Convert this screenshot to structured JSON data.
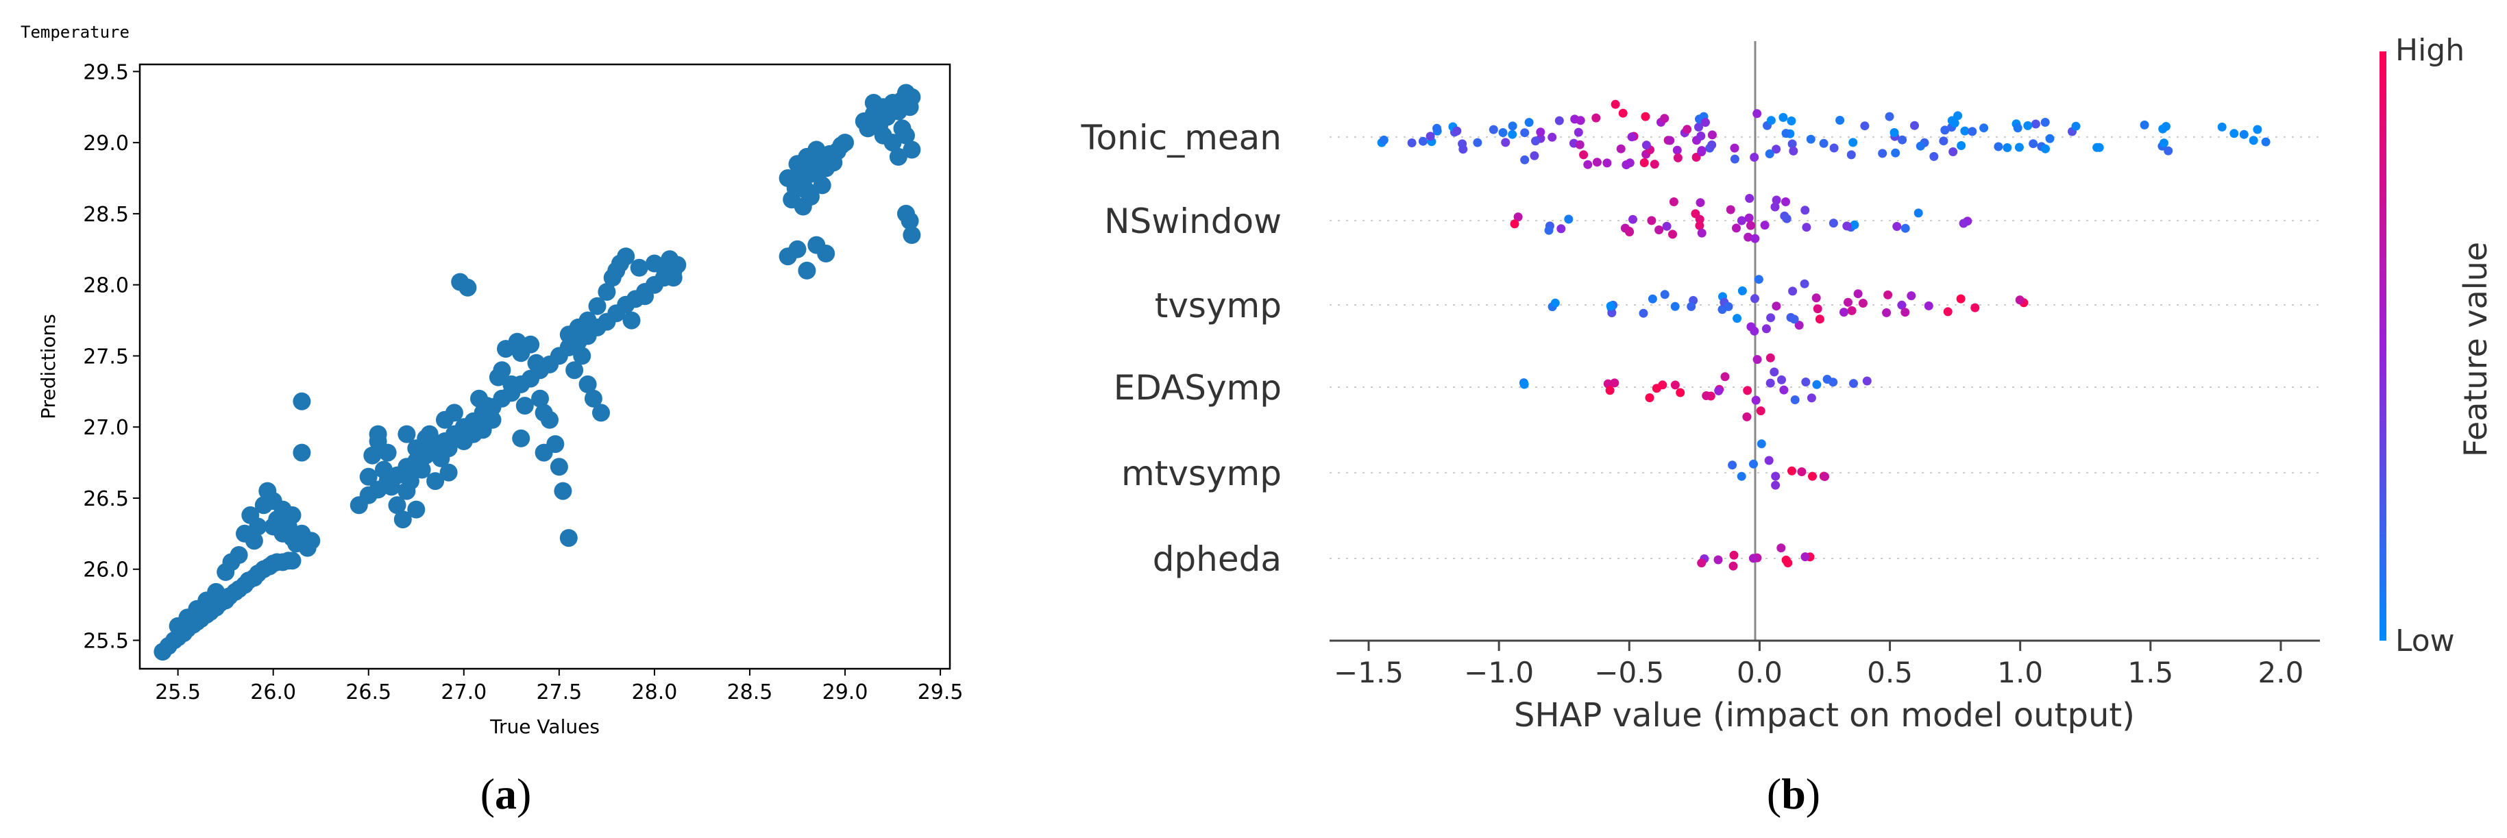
{
  "figure": {
    "caption_a": {
      "open": "(",
      "letter": "a",
      "close": ")"
    },
    "caption_b": {
      "open": "(",
      "letter": "b",
      "close": ")"
    }
  },
  "chart_data": [
    {
      "type": "scatter",
      "panel": "a",
      "title": "Temperature",
      "xlabel": "True Values",
      "ylabel": "Predictions",
      "xlim": [
        25.3,
        29.55
      ],
      "ylim": [
        25.3,
        29.55
      ],
      "xticks": [
        "25.5",
        "26.0",
        "26.5",
        "27.0",
        "27.5",
        "28.0",
        "28.5",
        "29.0",
        "29.5"
      ],
      "yticks": [
        "25.5",
        "26.0",
        "26.5",
        "27.0",
        "27.5",
        "28.0",
        "28.5",
        "29.0",
        "29.5"
      ],
      "color": "#1f77b4",
      "grid": false,
      "points": [
        [
          25.42,
          25.42
        ],
        [
          25.45,
          25.46
        ],
        [
          25.48,
          25.5
        ],
        [
          25.5,
          25.52
        ],
        [
          25.53,
          25.55
        ],
        [
          25.55,
          25.58
        ],
        [
          25.58,
          25.61
        ],
        [
          25.6,
          25.63
        ],
        [
          25.62,
          25.65
        ],
        [
          25.65,
          25.68
        ],
        [
          25.67,
          25.7
        ],
        [
          25.7,
          25.73
        ],
        [
          25.72,
          25.76
        ],
        [
          25.75,
          25.78
        ],
        [
          25.77,
          25.81
        ],
        [
          25.8,
          25.84
        ],
        [
          25.82,
          25.86
        ],
        [
          25.85,
          25.89
        ],
        [
          25.87,
          25.92
        ],
        [
          25.9,
          25.94
        ],
        [
          25.92,
          25.97
        ],
        [
          25.95,
          26.0
        ],
        [
          25.98,
          26.02
        ],
        [
          26.0,
          26.04
        ],
        [
          26.02,
          26.05
        ],
        [
          26.05,
          26.05
        ],
        [
          26.08,
          26.06
        ],
        [
          26.1,
          26.06
        ],
        [
          25.5,
          25.6
        ],
        [
          25.55,
          25.66
        ],
        [
          25.6,
          25.72
        ],
        [
          25.65,
          25.78
        ],
        [
          25.7,
          25.84
        ],
        [
          25.75,
          25.98
        ],
        [
          25.78,
          26.05
        ],
        [
          25.82,
          26.1
        ],
        [
          25.85,
          26.25
        ],
        [
          25.88,
          26.38
        ],
        [
          25.92,
          26.3
        ],
        [
          25.95,
          26.45
        ],
        [
          25.97,
          26.55
        ],
        [
          26.0,
          26.48
        ],
        [
          26.02,
          26.35
        ],
        [
          26.05,
          26.42
        ],
        [
          26.08,
          26.3
        ],
        [
          26.1,
          26.22
        ],
        [
          26.12,
          26.18
        ],
        [
          26.15,
          26.25
        ],
        [
          26.18,
          26.15
        ],
        [
          26.2,
          26.2
        ],
        [
          26.1,
          26.38
        ],
        [
          26.05,
          26.25
        ],
        [
          26.15,
          27.18
        ],
        [
          26.15,
          26.82
        ],
        [
          25.9,
          26.2
        ],
        [
          26.0,
          26.3
        ],
        [
          26.45,
          26.45
        ],
        [
          26.5,
          26.52
        ],
        [
          26.55,
          26.56
        ],
        [
          26.6,
          26.62
        ],
        [
          26.65,
          26.66
        ],
        [
          26.7,
          26.72
        ],
        [
          26.75,
          26.76
        ],
        [
          26.8,
          26.8
        ],
        [
          26.85,
          26.86
        ],
        [
          26.9,
          26.9
        ],
        [
          26.95,
          26.95
        ],
        [
          27.0,
          27.0
        ],
        [
          27.05,
          27.04
        ],
        [
          27.1,
          27.1
        ],
        [
          27.15,
          27.14
        ],
        [
          27.2,
          27.2
        ],
        [
          27.25,
          27.24
        ],
        [
          27.3,
          27.3
        ],
        [
          27.35,
          27.34
        ],
        [
          27.4,
          27.4
        ],
        [
          27.45,
          27.44
        ],
        [
          27.5,
          27.5
        ],
        [
          27.55,
          27.56
        ],
        [
          27.6,
          27.6
        ],
        [
          27.65,
          27.64
        ],
        [
          27.7,
          27.7
        ],
        [
          27.75,
          27.74
        ],
        [
          27.8,
          27.8
        ],
        [
          27.85,
          27.86
        ],
        [
          27.9,
          27.9
        ],
        [
          27.95,
          27.95
        ],
        [
          28.0,
          28.0
        ],
        [
          28.05,
          28.05
        ],
        [
          28.1,
          28.1
        ],
        [
          28.12,
          28.14
        ],
        [
          26.5,
          26.65
        ],
        [
          26.52,
          26.8
        ],
        [
          26.55,
          26.95
        ],
        [
          26.55,
          26.9
        ],
        [
          26.58,
          26.7
        ],
        [
          26.6,
          26.82
        ],
        [
          26.62,
          26.58
        ],
        [
          26.65,
          26.45
        ],
        [
          26.7,
          26.95
        ],
        [
          26.72,
          26.62
        ],
        [
          26.75,
          26.85
        ],
        [
          26.78,
          26.7
        ],
        [
          26.8,
          26.92
        ],
        [
          26.82,
          26.95
        ],
        [
          26.85,
          26.88
        ],
        [
          26.88,
          26.78
        ],
        [
          26.9,
          27.05
        ],
        [
          26.92,
          26.85
        ],
        [
          26.95,
          27.1
        ],
        [
          26.98,
          28.02
        ],
        [
          27.02,
          27.98
        ],
        [
          27.0,
          26.9
        ],
        [
          27.05,
          26.95
        ],
        [
          27.08,
          27.2
        ],
        [
          27.12,
          27.15
        ],
        [
          27.15,
          27.05
        ],
        [
          27.18,
          27.35
        ],
        [
          27.2,
          27.4
        ],
        [
          27.22,
          27.55
        ],
        [
          27.25,
          27.3
        ],
        [
          27.28,
          27.6
        ],
        [
          27.3,
          27.52
        ],
        [
          27.32,
          27.15
        ],
        [
          27.35,
          27.58
        ],
        [
          27.38,
          27.45
        ],
        [
          27.4,
          27.2
        ],
        [
          27.42,
          27.1
        ],
        [
          27.45,
          27.05
        ],
        [
          27.48,
          26.88
        ],
        [
          27.5,
          26.72
        ],
        [
          27.52,
          26.55
        ],
        [
          27.55,
          26.22
        ],
        [
          27.55,
          27.65
        ],
        [
          27.58,
          27.4
        ],
        [
          27.6,
          27.7
        ],
        [
          27.62,
          27.5
        ],
        [
          27.65,
          27.75
        ],
        [
          27.65,
          27.3
        ],
        [
          27.68,
          27.2
        ],
        [
          27.7,
          27.85
        ],
        [
          27.72,
          27.1
        ],
        [
          27.75,
          27.95
        ],
        [
          27.78,
          28.05
        ],
        [
          27.8,
          28.1
        ],
        [
          27.82,
          28.15
        ],
        [
          27.85,
          28.2
        ],
        [
          27.88,
          27.75
        ],
        [
          27.92,
          28.12
        ],
        [
          27.95,
          27.92
        ],
        [
          28.0,
          28.15
        ],
        [
          28.05,
          28.12
        ],
        [
          28.08,
          28.18
        ],
        [
          28.1,
          28.05
        ],
        [
          26.68,
          26.35
        ],
        [
          26.7,
          26.55
        ],
        [
          26.75,
          26.42
        ],
        [
          26.85,
          26.62
        ],
        [
          26.92,
          26.68
        ],
        [
          27.1,
          26.98
        ],
        [
          27.3,
          26.92
        ],
        [
          27.42,
          26.82
        ],
        [
          28.7,
          28.75
        ],
        [
          28.72,
          28.6
        ],
        [
          28.74,
          28.68
        ],
        [
          28.76,
          28.8
        ],
        [
          28.78,
          28.72
        ],
        [
          28.8,
          28.66
        ],
        [
          28.82,
          28.78
        ],
        [
          28.84,
          28.85
        ],
        [
          28.86,
          28.8
        ],
        [
          28.88,
          28.88
        ],
        [
          28.9,
          28.82
        ],
        [
          28.92,
          28.92
        ],
        [
          28.94,
          28.86
        ],
        [
          28.96,
          28.94
        ],
        [
          28.98,
          28.98
        ],
        [
          29.0,
          29.0
        ],
        [
          28.75,
          28.85
        ],
        [
          28.8,
          28.9
        ],
        [
          28.85,
          28.95
        ],
        [
          28.78,
          28.55
        ],
        [
          28.82,
          28.62
        ],
        [
          28.88,
          28.7
        ],
        [
          28.7,
          28.2
        ],
        [
          28.75,
          28.25
        ],
        [
          28.8,
          28.1
        ],
        [
          28.85,
          28.28
        ],
        [
          28.9,
          28.22
        ],
        [
          29.1,
          29.15
        ],
        [
          29.12,
          29.1
        ],
        [
          29.15,
          29.2
        ],
        [
          29.18,
          29.12
        ],
        [
          29.2,
          29.25
        ],
        [
          29.22,
          29.18
        ],
        [
          29.25,
          29.28
        ],
        [
          29.28,
          29.22
        ],
        [
          29.3,
          29.3
        ],
        [
          29.32,
          29.35
        ],
        [
          29.34,
          29.25
        ],
        [
          29.35,
          29.32
        ],
        [
          29.2,
          29.05
        ],
        [
          29.25,
          29.0
        ],
        [
          29.3,
          29.1
        ],
        [
          29.32,
          29.05
        ],
        [
          29.35,
          28.95
        ],
        [
          29.28,
          28.9
        ],
        [
          29.32,
          28.5
        ],
        [
          29.34,
          28.45
        ],
        [
          29.35,
          28.35
        ],
        [
          29.15,
          29.28
        ]
      ]
    },
    {
      "type": "scatter",
      "subtype": "beeswarm",
      "panel": "b",
      "xlabel": "SHAP value (impact on model output)",
      "xlim": [
        -1.65,
        2.15
      ],
      "xticks": [
        "−1.5",
        "−1.0",
        "−0.5",
        "0.0",
        "0.5",
        "1.0",
        "1.5",
        "2.0"
      ],
      "xtick_values": [
        -1.5,
        -1.0,
        -0.5,
        0.0,
        0.5,
        1.0,
        1.5,
        2.0
      ],
      "colorbar": {
        "label": "Feature value",
        "high": "High",
        "low": "Low",
        "high_color": "#ff0052",
        "low_color": "#008afb"
      },
      "features": [
        {
          "name": "Tonic_mean",
          "spans": [
            {
              "x": -1.43,
              "w": 0.02,
              "h": 0.2,
              "c": 0.08
            },
            {
              "x": -1.3,
              "w": 0.1,
              "h": 0.35,
              "c": 0.12
            },
            {
              "x": -1.15,
              "w": 0.08,
              "h": 0.45,
              "c": 0.1
            },
            {
              "x": -0.95,
              "w": 0.08,
              "h": 0.5,
              "c": 0.15
            },
            {
              "x": -0.8,
              "w": 0.12,
              "h": 0.7,
              "c": 0.35
            },
            {
              "x": -0.55,
              "w": 0.14,
              "h": 1.0,
              "c": 0.75
            },
            {
              "x": -0.35,
              "w": 0.14,
              "h": 0.85,
              "c": 0.6
            },
            {
              "x": -0.12,
              "w": 0.12,
              "h": 0.75,
              "c": 0.35
            },
            {
              "x": 0.15,
              "w": 0.16,
              "h": 0.6,
              "c": 0.12
            },
            {
              "x": 0.55,
              "w": 0.25,
              "h": 0.65,
              "c": 0.08
            },
            {
              "x": 0.95,
              "w": 0.18,
              "h": 0.5,
              "c": 0.05
            },
            {
              "x": 1.25,
              "w": 0.06,
              "h": 0.35,
              "c": 0.05
            },
            {
              "x": 1.55,
              "w": 0.08,
              "h": 0.45,
              "c": 0.04
            },
            {
              "x": 1.85,
              "w": 0.1,
              "h": 0.35,
              "c": 0.04
            }
          ]
        },
        {
          "name": "NSwindow",
          "spans": [
            {
              "x": -0.93,
              "w": 0.01,
              "h": 0.15,
              "c": 0.9
            },
            {
              "x": -0.75,
              "w": 0.06,
              "h": 0.3,
              "c": 0.3
            },
            {
              "x": -0.45,
              "w": 0.1,
              "h": 0.45,
              "c": 0.55
            },
            {
              "x": -0.28,
              "w": 0.08,
              "h": 0.6,
              "c": 0.7
            },
            {
              "x": -0.05,
              "w": 0.08,
              "h": 1.0,
              "c": 0.6
            },
            {
              "x": 0.12,
              "w": 0.08,
              "h": 0.7,
              "c": 0.45
            },
            {
              "x": 0.32,
              "w": 0.06,
              "h": 0.35,
              "c": 0.2
            },
            {
              "x": 0.55,
              "w": 0.06,
              "h": 0.25,
              "c": 0.25
            },
            {
              "x": 0.78,
              "w": 0.04,
              "h": 0.15,
              "c": 0.6
            }
          ]
        },
        {
          "name": "tvsymp",
          "spans": [
            {
              "x": -0.82,
              "w": 0.04,
              "h": 0.15,
              "c": 0.08
            },
            {
              "x": -0.6,
              "w": 0.08,
              "h": 0.25,
              "c": 0.1
            },
            {
              "x": -0.35,
              "w": 0.1,
              "h": 0.35,
              "c": 0.12
            },
            {
              "x": -0.12,
              "w": 0.06,
              "h": 0.6,
              "c": 0.2
            },
            {
              "x": -0.03,
              "w": 0.04,
              "h": 1.0,
              "c": 0.25
            },
            {
              "x": 0.1,
              "w": 0.08,
              "h": 0.75,
              "c": 0.45
            },
            {
              "x": 0.3,
              "w": 0.1,
              "h": 0.5,
              "c": 0.7
            },
            {
              "x": 0.55,
              "w": 0.1,
              "h": 0.35,
              "c": 0.7
            },
            {
              "x": 0.78,
              "w": 0.06,
              "h": 0.25,
              "c": 0.85
            },
            {
              "x": 1.0,
              "w": 0.02,
              "h": 0.15,
              "c": 0.9
            }
          ]
        },
        {
          "name": "EDASymp",
          "spans": [
            {
              "x": -0.88,
              "w": 0.03,
              "h": 0.15,
              "c": 0.05
            },
            {
              "x": -0.6,
              "w": 0.06,
              "h": 0.2,
              "c": 0.9
            },
            {
              "x": -0.38,
              "w": 0.08,
              "h": 0.35,
              "c": 0.92
            },
            {
              "x": -0.18,
              "w": 0.06,
              "h": 0.5,
              "c": 0.75
            },
            {
              "x": 0.0,
              "w": 0.05,
              "h": 1.0,
              "c": 0.7
            },
            {
              "x": 0.1,
              "w": 0.06,
              "h": 0.6,
              "c": 0.4
            },
            {
              "x": 0.25,
              "w": 0.08,
              "h": 0.35,
              "c": 0.2
            },
            {
              "x": 0.4,
              "w": 0.04,
              "h": 0.2,
              "c": 0.15
            }
          ]
        },
        {
          "name": "mtvsymp",
          "spans": [
            {
              "x": -0.08,
              "w": 0.03,
              "h": 0.3,
              "c": 0.05
            },
            {
              "x": -0.01,
              "w": 0.02,
              "h": 1.0,
              "c": 0.2
            },
            {
              "x": 0.06,
              "w": 0.04,
              "h": 0.4,
              "c": 0.6
            },
            {
              "x": 0.18,
              "w": 0.08,
              "h": 0.3,
              "c": 0.9
            }
          ]
        },
        {
          "name": "dpheda",
          "spans": [
            {
              "x": -0.22,
              "w": 0.01,
              "h": 0.15,
              "c": 0.7
            },
            {
              "x": -0.12,
              "w": 0.04,
              "h": 0.35,
              "c": 0.85
            },
            {
              "x": -0.01,
              "w": 0.02,
              "h": 1.0,
              "c": 0.75
            },
            {
              "x": 0.08,
              "w": 0.04,
              "h": 0.4,
              "c": 0.9
            },
            {
              "x": 0.18,
              "w": 0.02,
              "h": 0.2,
              "c": 0.8
            }
          ]
        }
      ]
    }
  ]
}
